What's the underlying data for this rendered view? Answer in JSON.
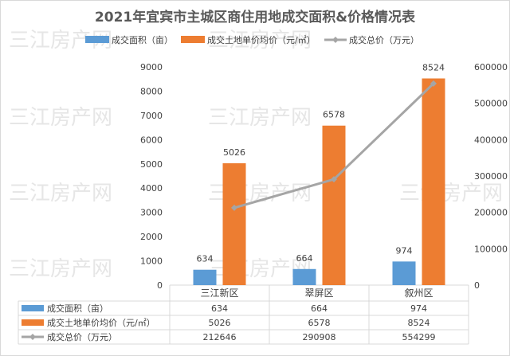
{
  "watermark": "三江房产网",
  "colors": {
    "area": "#5b9bd5",
    "price": "#ed7d31",
    "total": "#a5a5a5"
  },
  "chart_data": {
    "type": "bar",
    "title": "2021年宜宾市主城区商住用地成交面积&价格情况表",
    "categories": [
      "三江新区",
      "翠屏区",
      "叙州区"
    ],
    "series": [
      {
        "name": "成交面积（亩）",
        "type": "bar",
        "axis": "left",
        "values": [
          634,
          664,
          974
        ]
      },
      {
        "name": "成交土地单价均价（元/㎡）",
        "type": "bar",
        "axis": "left",
        "values": [
          5026,
          6578,
          8524
        ]
      },
      {
        "name": "成交总价（万元）",
        "type": "line",
        "axis": "right",
        "values": [
          212646,
          290908,
          554299
        ]
      }
    ],
    "y_left": {
      "min": 0,
      "max": 9000,
      "step": 1000
    },
    "y_right": {
      "min": 0,
      "max": 600000,
      "step": 100000
    },
    "grid": false,
    "legend_position": "top",
    "data_table": true
  }
}
